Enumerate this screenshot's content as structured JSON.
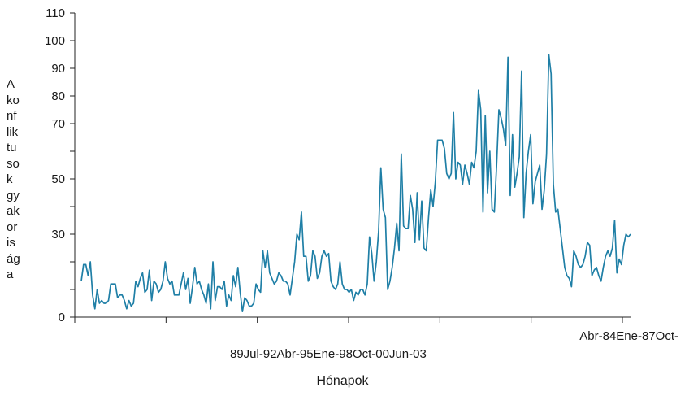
{
  "chart_data": {
    "type": "line",
    "title": "",
    "xlabel": "Hónapok",
    "ylabel": "A konfliktusok gyakorisága",
    "ylabel_lines": [
      "A",
      "ko",
      "nf",
      "lik",
      "tu",
      "so",
      "k",
      "gy",
      "ak",
      "or",
      "is",
      "ág",
      "a"
    ],
    "x_tick_label_lines": [
      "Abr-84Ene-87Oct-",
      "89Jul-92Abr-95Ene-98Oct-00Jun-03"
    ],
    "yticks": [
      0,
      30,
      50,
      70,
      80,
      90,
      100,
      110
    ],
    "ylim": [
      0,
      110
    ],
    "grid": false,
    "series_color": "#1f7fa6",
    "series": [
      {
        "values": [
          13,
          19,
          19,
          15,
          20,
          8,
          3,
          10,
          5,
          6,
          5,
          5,
          6,
          12,
          12,
          12,
          7,
          8,
          8,
          6,
          3,
          6,
          4,
          5,
          13,
          11,
          14,
          16,
          9,
          10,
          17,
          6,
          13,
          12,
          9,
          10,
          13,
          20,
          14,
          12,
          13,
          8,
          8,
          8,
          12,
          16,
          10,
          14,
          5,
          11,
          18,
          12,
          13,
          10,
          8,
          5,
          12,
          3,
          20,
          6,
          11,
          11,
          10,
          13,
          4,
          8,
          6,
          15,
          11,
          18,
          9,
          2,
          7,
          6,
          4,
          4,
          5,
          12,
          10,
          9,
          24,
          18,
          24,
          16,
          14,
          12,
          13,
          16,
          15,
          13,
          13,
          12,
          8,
          14,
          20,
          30,
          28,
          38,
          22,
          22,
          13,
          15,
          24,
          22,
          14,
          16,
          22,
          24,
          22,
          23,
          13,
          11,
          10,
          12,
          20,
          12,
          10,
          10,
          9,
          10,
          6,
          9,
          8,
          10,
          10,
          8,
          12,
          29,
          23,
          13,
          20,
          31,
          54,
          39,
          36,
          10,
          13,
          18,
          25,
          34,
          24,
          59,
          33,
          32,
          32,
          44,
          39,
          27,
          45,
          28,
          42,
          25,
          24,
          36,
          46,
          40,
          49,
          64,
          64,
          64,
          61,
          52,
          50,
          52,
          74,
          50,
          56,
          55,
          48,
          55,
          52,
          48,
          56,
          54,
          60,
          82,
          75,
          38,
          73,
          45,
          60,
          39,
          38,
          55,
          75,
          72,
          68,
          62,
          94,
          44,
          66,
          47,
          52,
          58,
          89,
          36,
          52,
          60,
          66,
          41,
          49,
          52,
          55,
          39,
          46,
          59,
          95,
          88,
          48,
          38,
          39,
          32,
          25,
          18,
          15,
          14,
          11,
          24,
          22,
          19,
          18,
          19,
          22,
          27,
          26,
          15,
          17,
          18,
          15,
          13,
          18,
          22,
          24,
          22,
          25,
          35,
          16,
          21,
          19,
          26,
          30,
          29,
          30
        ]
      }
    ]
  }
}
